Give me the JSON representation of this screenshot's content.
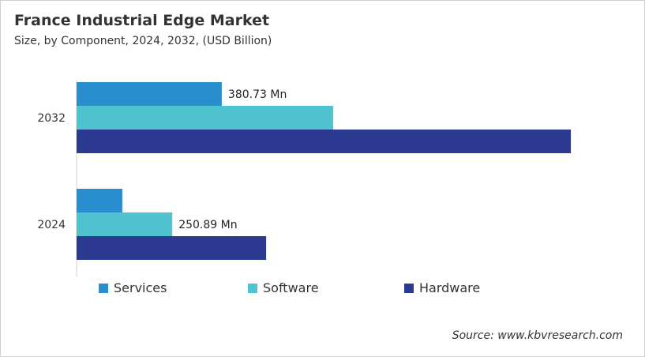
{
  "chart_data": {
    "type": "bar",
    "orientation": "horizontal",
    "title": "France Industrial  Edge Market",
    "subtitle": "Size, by Component, 2024, 2032, (USD Billion)",
    "categories": [
      "2032",
      "2024"
    ],
    "series": [
      {
        "name": "Services",
        "color": "#2a8fcf",
        "values": [
          380.73,
          120
        ]
      },
      {
        "name": "Software",
        "color": "#4fc3cf",
        "values": [
          673,
          250.89
        ]
      },
      {
        "name": "Hardware",
        "color": "#2b3990",
        "values": [
          1296,
          497
        ]
      }
    ],
    "data_labels": [
      {
        "category": "2032",
        "series": "Services",
        "text": "380.73 Mn"
      },
      {
        "category": "2024",
        "series": "Software",
        "text": "250.89 Mn"
      }
    ],
    "xlim": [
      0,
      1300
    ],
    "grid": false,
    "legend": "bottom",
    "source": "Source: www.kbvresearch.com"
  }
}
